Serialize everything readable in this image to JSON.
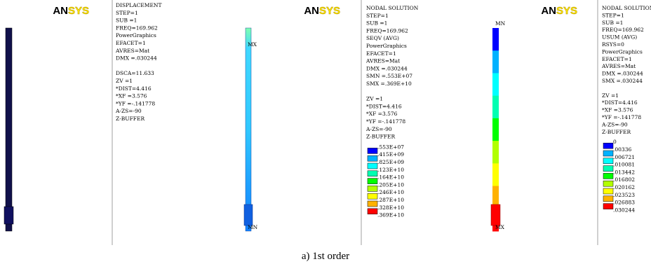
{
  "panels": [
    {
      "logo": {
        "left": "AN",
        "right": "SYS"
      },
      "info": [
        "DISPLACEMENT",
        "STEP=1",
        "SUB =1",
        "FREQ=169.962",
        "PowerGraphics",
        "EFACET=1",
        "AVRES=Mat",
        "DMX =.030244"
      ],
      "view": [
        "DSCA=11.633",
        "ZV  =1",
        "*DIST=4.416",
        "*XF  =3.576",
        "*YF  =-.141778",
        "A-ZS=-90",
        "Z-BUFFER"
      ]
    },
    {
      "logo": {
        "left": "AN",
        "right": "SYS"
      },
      "info": [
        "NODAL SOLUTION",
        "STEP=1",
        "SUB =1",
        "FREQ=169.962",
        "SEQV     (AVG)",
        "PowerGraphics",
        "EFACET=1",
        "AVRES=Mat",
        "DMX =.030244",
        "SMN =.553E+07",
        "SMX =.369E+10"
      ],
      "view": [
        "ZV  =1",
        "*DIST=4.416",
        "*XF  =3.576",
        "*YF  =-.141778",
        "A-ZS=-90",
        "Z-BUFFER"
      ],
      "top_label": "MX",
      "bottom_label": "MN",
      "legend": [
        ".553E+07",
        ".415E+09",
        ".825E+09",
        ".123E+10",
        ".164E+10",
        ".205E+10",
        ".246E+10",
        ".287E+10",
        ".328E+10",
        ".369E+10"
      ]
    },
    {
      "logo": {
        "left": "AN",
        "right": "SYS"
      },
      "info": [
        "NODAL SOLUTION",
        "STEP=1",
        "SUB =1",
        "FREQ=169.962",
        "USUM     (AVG)",
        "RSYS=0",
        "PowerGraphics",
        "EFACET=1",
        "AVRES=Mat",
        "DMX =.030244",
        "SMX =.030244"
      ],
      "view": [
        "ZV  =1",
        "*DIST=4.416",
        "*XF  =3.576",
        "*YF  =-.141778",
        "A-ZS=-90",
        "Z-BUFFER"
      ],
      "top_label": "MN",
      "bottom_label": "MX",
      "legend": [
        "0",
        ".00336",
        ".006721",
        ".010081",
        ".013442",
        ".016802",
        ".020162",
        ".023523",
        ".026883",
        ".030244"
      ]
    }
  ],
  "contour_colors": [
    "#0000ff",
    "#00b2ff",
    "#00ffff",
    "#00ffb2",
    "#00ff00",
    "#b2ff00",
    "#ffff00",
    "#ffb200",
    "#ff0000"
  ],
  "caption": "a) 1st order"
}
